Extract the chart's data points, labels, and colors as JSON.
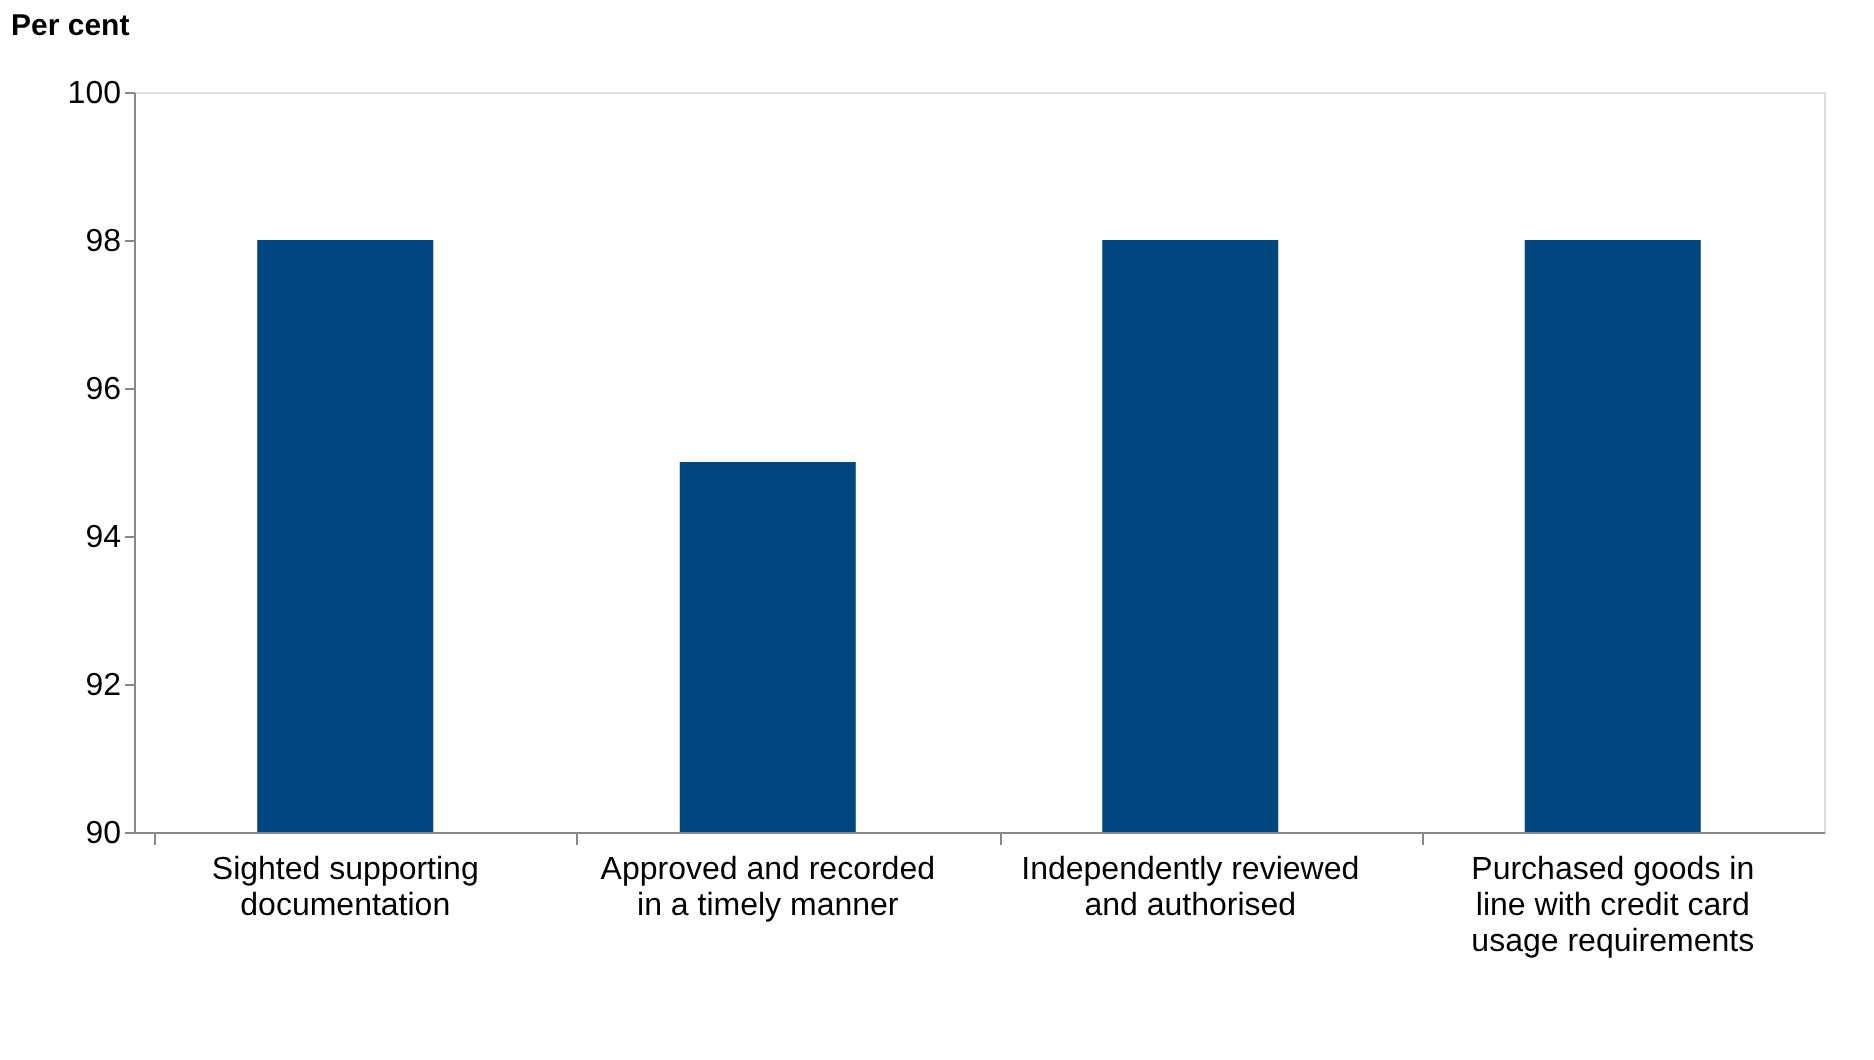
{
  "chart_data": {
    "type": "bar",
    "ylabel": "Per cent",
    "categories": [
      "Sighted supporting documentation",
      "Approved and recorded in a timely manner",
      "Independently reviewed and authorised",
      "Purchased goods in line with credit card usage requirements"
    ],
    "values": [
      98,
      95,
      98,
      98
    ],
    "color": "#004680",
    "ylim": [
      90,
      100
    ],
    "yticks": [
      90,
      92,
      94,
      96,
      98,
      100
    ],
    "grid": false
  }
}
